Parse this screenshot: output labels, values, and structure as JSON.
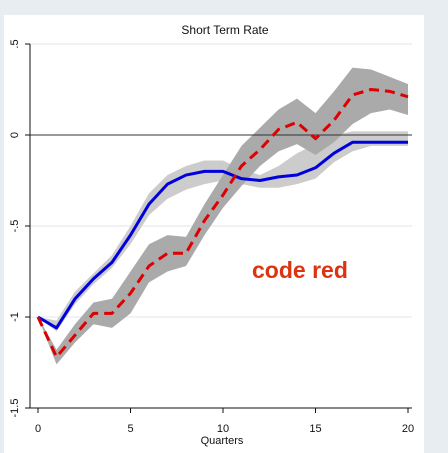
{
  "chart_data": {
    "type": "line",
    "title": "Short Term Rate",
    "xlabel": "Quarters",
    "ylabel": "",
    "xlim": [
      0,
      20
    ],
    "ylim": [
      -1.5,
      0.5
    ],
    "xticks": [
      0,
      5,
      10,
      15,
      20
    ],
    "yticks": [
      -1.5,
      -1,
      -0.5,
      0,
      0.5
    ],
    "xtick_labels": [
      "0",
      "5",
      "10",
      "15",
      "20"
    ],
    "ytick_labels": [
      "-1.5",
      "-1",
      "-.5",
      "0",
      ".5"
    ],
    "x": [
      0,
      1,
      2,
      3,
      4,
      5,
      6,
      7,
      8,
      9,
      10,
      11,
      12,
      13,
      14,
      15,
      16,
      17,
      18,
      19,
      20
    ],
    "series": [
      {
        "style": "solid",
        "color": "#0000dd",
        "values": [
          -1.0,
          -1.06,
          -0.9,
          -0.79,
          -0.7,
          -0.55,
          -0.38,
          -0.27,
          -0.22,
          -0.2,
          -0.2,
          -0.24,
          -0.25,
          -0.23,
          -0.22,
          -0.18,
          -0.1,
          -0.04,
          -0.04,
          -0.04,
          -0.04
        ],
        "band_lower": [
          -1.0,
          -1.08,
          -0.93,
          -0.82,
          -0.73,
          -0.6,
          -0.44,
          -0.35,
          -0.3,
          -0.27,
          -0.25,
          -0.27,
          -0.29,
          -0.29,
          -0.27,
          -0.24,
          -0.15,
          -0.09,
          -0.06,
          -0.06,
          -0.06
        ],
        "band_upper": [
          -1.0,
          -1.02,
          -0.86,
          -0.76,
          -0.66,
          -0.5,
          -0.32,
          -0.22,
          -0.17,
          -0.14,
          -0.14,
          -0.19,
          -0.22,
          -0.17,
          -0.1,
          -0.05,
          0.0,
          0.02,
          0.02,
          0.02,
          0.02
        ],
        "band_color": "#cccccc"
      },
      {
        "style": "dashed",
        "color": "#dd0000",
        "values": [
          -1.0,
          -1.22,
          -1.1,
          -0.98,
          -0.98,
          -0.87,
          -0.72,
          -0.65,
          -0.65,
          -0.47,
          -0.33,
          -0.17,
          -0.08,
          0.03,
          0.07,
          -0.02,
          0.08,
          0.22,
          0.25,
          0.24,
          0.21
        ],
        "band_lower": [
          -1.0,
          -1.26,
          -1.14,
          -1.04,
          -1.06,
          -0.98,
          -0.81,
          -0.75,
          -0.72,
          -0.55,
          -0.4,
          -0.28,
          -0.17,
          -0.09,
          -0.05,
          -0.11,
          -0.04,
          0.06,
          0.12,
          0.14,
          0.11
        ],
        "band_upper": [
          -1.0,
          -1.18,
          -1.04,
          -0.92,
          -0.9,
          -0.75,
          -0.6,
          -0.55,
          -0.56,
          -0.38,
          -0.22,
          -0.06,
          0.04,
          0.14,
          0.2,
          0.12,
          0.24,
          0.37,
          0.36,
          0.32,
          0.28
        ],
        "band_color": "#aaaaaa"
      }
    ],
    "annotation": {
      "text": "code red",
      "color": "#dd3311"
    },
    "background": "#e8edf1",
    "reference_line_y": 0,
    "grid": "horizontal"
  }
}
